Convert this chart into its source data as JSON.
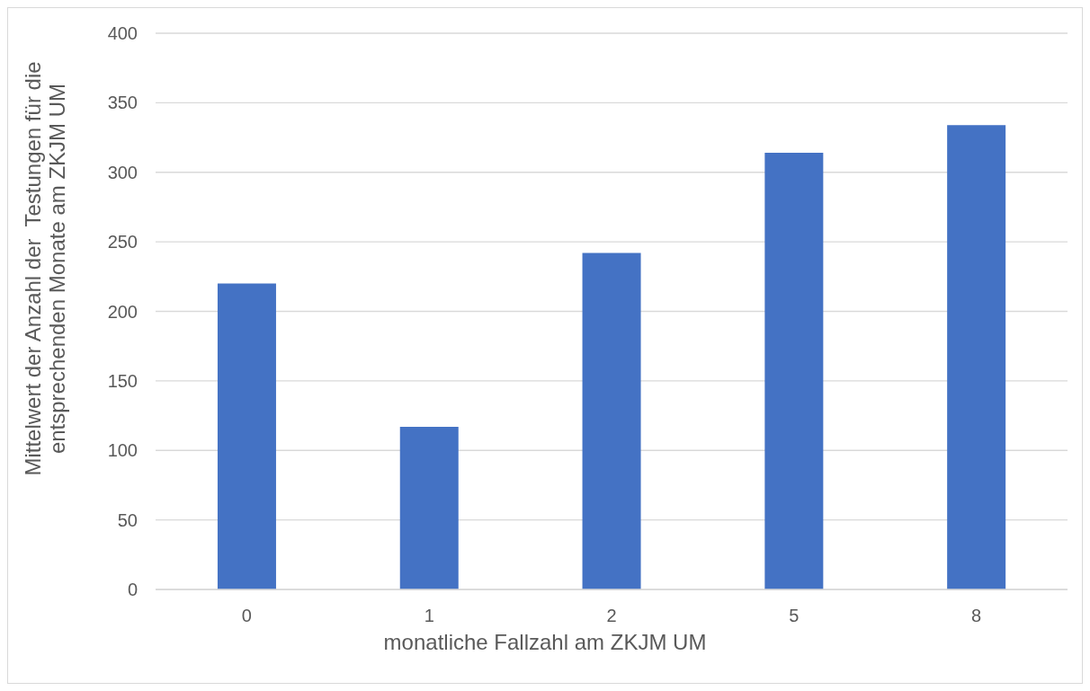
{
  "chart_data": {
    "type": "bar",
    "xlabel": "monatliche Fallzahl am ZKJM UM",
    "ylabel": "Mittelwert der Anzahl der  Testungen für die entsprechenden Monate am ZKJM UM",
    "categories": [
      "0",
      "1",
      "2",
      "5",
      "8"
    ],
    "values": [
      220,
      117,
      242,
      314,
      334
    ],
    "color": "#4472c4",
    "ylim": [
      0,
      400
    ],
    "yticks": [
      0,
      50,
      100,
      150,
      200,
      250,
      300,
      350,
      400
    ],
    "grid": "y"
  }
}
